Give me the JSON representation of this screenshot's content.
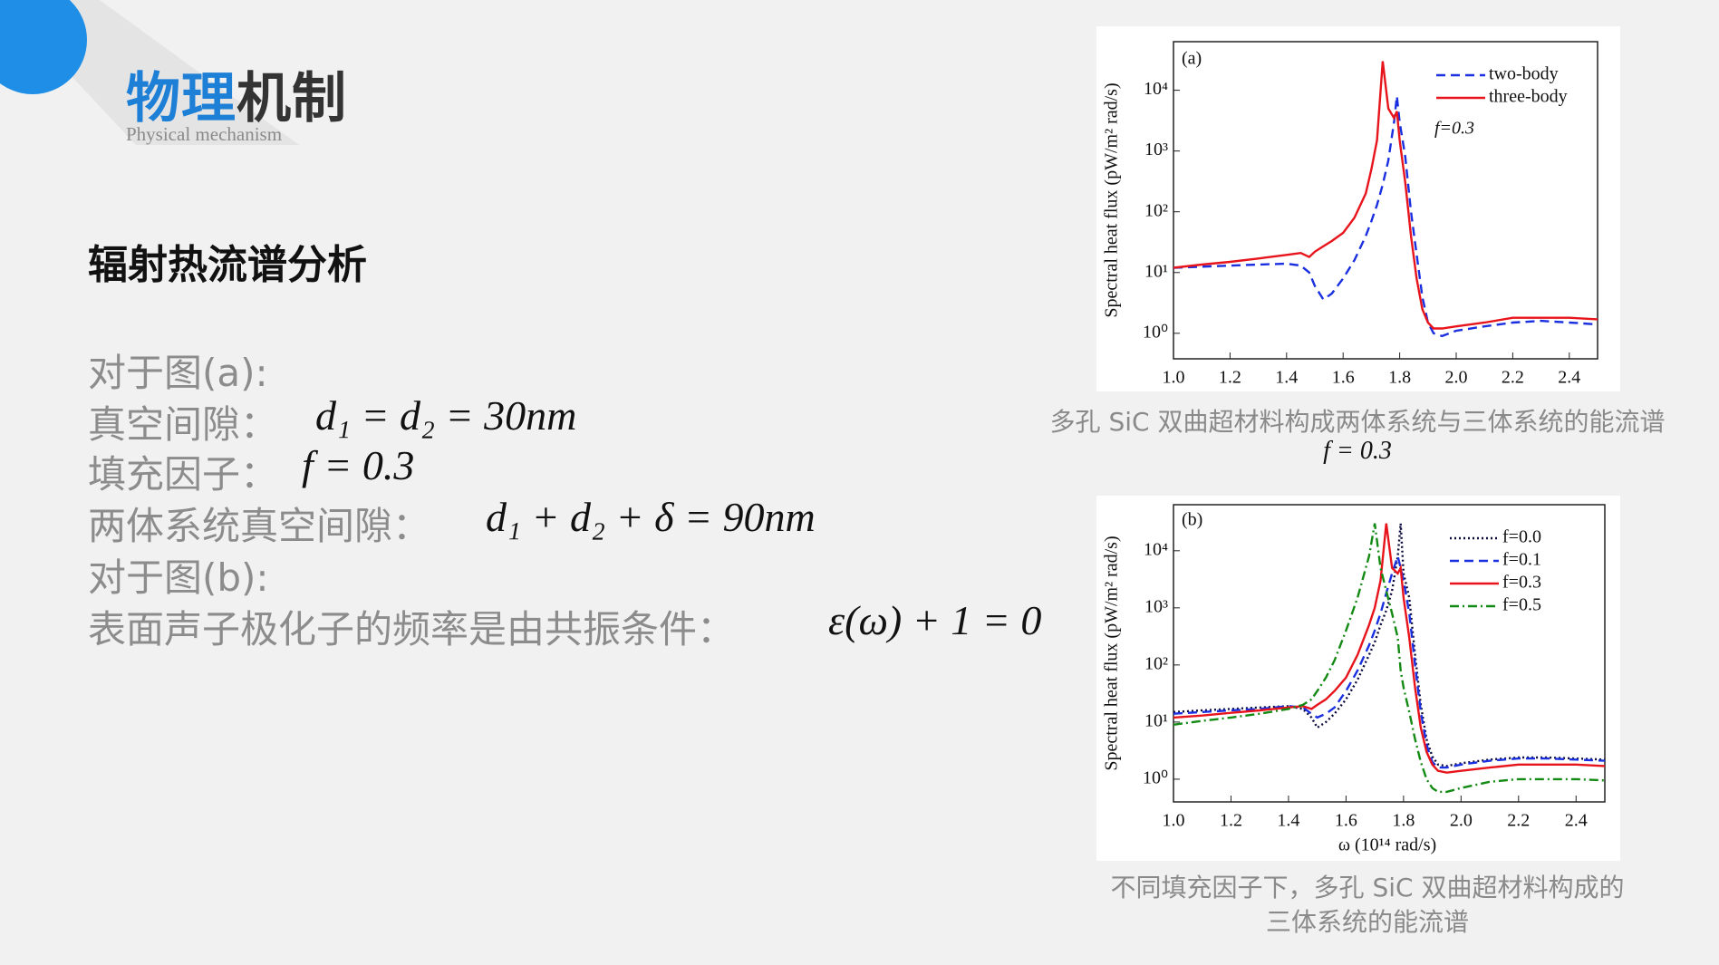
{
  "header": {
    "title_blue": "物理",
    "title_dark": "机制",
    "subtitle": "Physical mechanism"
  },
  "section_title": "辐射热流谱分析",
  "body": [
    {
      "text": "对于图(a):"
    },
    {
      "text": "真空间隙：",
      "math": "d₁ = d₂ = 30nm"
    },
    {
      "text": "填充因子：",
      "math": "f = 0.3"
    },
    {
      "text": "两体系统真空间隙：",
      "math": "d₁ + d₂ + δ = 90nm"
    },
    {
      "text": "对于图(b):"
    },
    {
      "text": "表面声子极化子的频率是由共振条件：",
      "math": "ε(ω) + 1 = 0"
    }
  ],
  "captions": [
    [
      "多孔 SiC 双曲超材料构成两体系统与三体系统的能流谱",
      "f = 0.3"
    ],
    [
      "不同填充因子下，多孔 SiC 双曲超材料构成的",
      "三体系统的能流谱"
    ]
  ],
  "chart_data": [
    {
      "type": "line",
      "panel_label": "(a)",
      "ylabel": "Spectral heat flux (pW/m² rad/s)",
      "annotation": "f=0.3",
      "log_y": true,
      "legend": "upper right",
      "xlim": [
        1.0,
        2.5
      ],
      "xticks": [
        {
          "value": 1.0,
          "label": "1.0"
        },
        1.2,
        1.4,
        1.6,
        1.8,
        {
          "value": 2.0,
          "label": "2.0"
        },
        2.2,
        2.4
      ],
      "ylim": [
        0.38,
        63000
      ],
      "yticks": [
        {
          "value": 1,
          "label": "10⁰"
        },
        {
          "value": 10,
          "label": "10¹"
        },
        {
          "value": 100,
          "label": "10²"
        },
        {
          "value": 1000,
          "label": "10³"
        },
        {
          "value": 10000,
          "label": "10⁴"
        }
      ],
      "x": [
        1.0,
        1.1,
        1.2,
        1.3,
        1.4,
        1.45,
        1.48,
        1.5,
        1.53,
        1.56,
        1.6,
        1.64,
        1.68,
        1.7,
        1.72,
        1.74,
        1.76,
        1.78,
        1.79,
        1.8,
        1.82,
        1.84,
        1.86,
        1.88,
        1.9,
        1.92,
        1.95,
        2.0,
        2.1,
        2.2,
        2.3,
        2.4,
        2.5
      ],
      "series": [
        {
          "name": "two-body",
          "color": "#1a2fe0",
          "style": "dashed",
          "values": [
            12,
            12.5,
            13,
            13.5,
            14,
            13,
            10,
            6,
            3.6,
            4.5,
            8,
            16,
            40,
            70,
            130,
            280,
            700,
            3000,
            8000,
            3000,
            800,
            100,
            20,
            4,
            1.5,
            1.0,
            0.9,
            1.1,
            1.3,
            1.5,
            1.6,
            1.5,
            1.4
          ]
        },
        {
          "name": "three-body",
          "color": "#e8141c",
          "style": "solid",
          "values": [
            12,
            13.5,
            15,
            17,
            19.5,
            21,
            18,
            22,
            27,
            33,
            45,
            80,
            200,
            500,
            1500,
            30000,
            5000,
            3500,
            4500,
            1500,
            300,
            40,
            8,
            2.5,
            1.5,
            1.2,
            1.2,
            1.3,
            1.5,
            1.8,
            1.8,
            1.8,
            1.7
          ]
        }
      ]
    },
    {
      "type": "line",
      "panel_label": "(b)",
      "ylabel": "Spectral heat flux (pW/m² rad/s)",
      "xlabel": "ω (10¹⁴ rad/s)",
      "log_y": true,
      "legend": "upper right",
      "xlim": [
        1.0,
        2.5
      ],
      "xticks": [
        {
          "value": 1.0,
          "label": "1.0"
        },
        1.2,
        1.4,
        1.6,
        1.8,
        {
          "value": 2.0,
          "label": "2.0"
        },
        2.2,
        2.4
      ],
      "ylim": [
        0.4,
        64000
      ],
      "yticks": [
        {
          "value": 1,
          "label": "10⁰"
        },
        {
          "value": 10,
          "label": "10¹"
        },
        {
          "value": 100,
          "label": "10²"
        },
        {
          "value": 1000,
          "label": "10³"
        },
        {
          "value": 10000,
          "label": "10⁴"
        }
      ],
      "x": [
        1.0,
        1.1,
        1.2,
        1.3,
        1.4,
        1.45,
        1.48,
        1.5,
        1.53,
        1.56,
        1.6,
        1.64,
        1.68,
        1.7,
        1.72,
        1.74,
        1.76,
        1.78,
        1.79,
        1.8,
        1.82,
        1.84,
        1.86,
        1.88,
        1.9,
        1.92,
        1.95,
        2.0,
        2.1,
        2.2,
        2.3,
        2.4,
        2.5
      ],
      "series": [
        {
          "name": "f=0.0",
          "color": "#0a0a3c",
          "style": "dotted",
          "values": [
            15,
            16,
            17,
            18,
            19,
            17,
            12,
            8,
            10,
            14,
            25,
            55,
            150,
            250,
            500,
            900,
            2000,
            8000,
            30000,
            4000,
            1500,
            150,
            20,
            5,
            2.5,
            1.8,
            1.7,
            1.9,
            2.2,
            2.4,
            2.4,
            2.3,
            2.2
          ]
        },
        {
          "name": "f=0.1",
          "color": "#1a2fe0",
          "style": "dashed",
          "values": [
            14,
            15,
            16,
            17,
            19,
            18,
            14,
            12,
            14,
            18,
            35,
            80,
            220,
            400,
            800,
            1800,
            4000,
            8000,
            5000,
            3000,
            800,
            100,
            15,
            4,
            2,
            1.6,
            1.6,
            1.8,
            2.1,
            2.3,
            2.3,
            2.2,
            2.1
          ]
        },
        {
          "name": "f=0.3",
          "color": "#e8141c",
          "style": "solid",
          "values": [
            12,
            13,
            14.5,
            16,
            18,
            19,
            17,
            20,
            25,
            35,
            60,
            150,
            500,
            1000,
            3000,
            30000,
            5000,
            4000,
            5000,
            1500,
            300,
            40,
            8,
            3,
            1.8,
            1.4,
            1.3,
            1.4,
            1.6,
            1.8,
            1.8,
            1.8,
            1.7
          ]
        },
        {
          "name": "f=0.5",
          "color": "#138a13",
          "style": "dashdot",
          "values": [
            9,
            10.5,
            12,
            14,
            17,
            20,
            25,
            35,
            60,
            120,
            400,
            1500,
            8000,
            30000,
            5000,
            2000,
            800,
            300,
            80,
            40,
            15,
            5,
            2,
            1,
            0.7,
            0.6,
            0.6,
            0.7,
            0.9,
            1.0,
            1.0,
            1.0,
            0.95
          ]
        }
      ]
    }
  ]
}
